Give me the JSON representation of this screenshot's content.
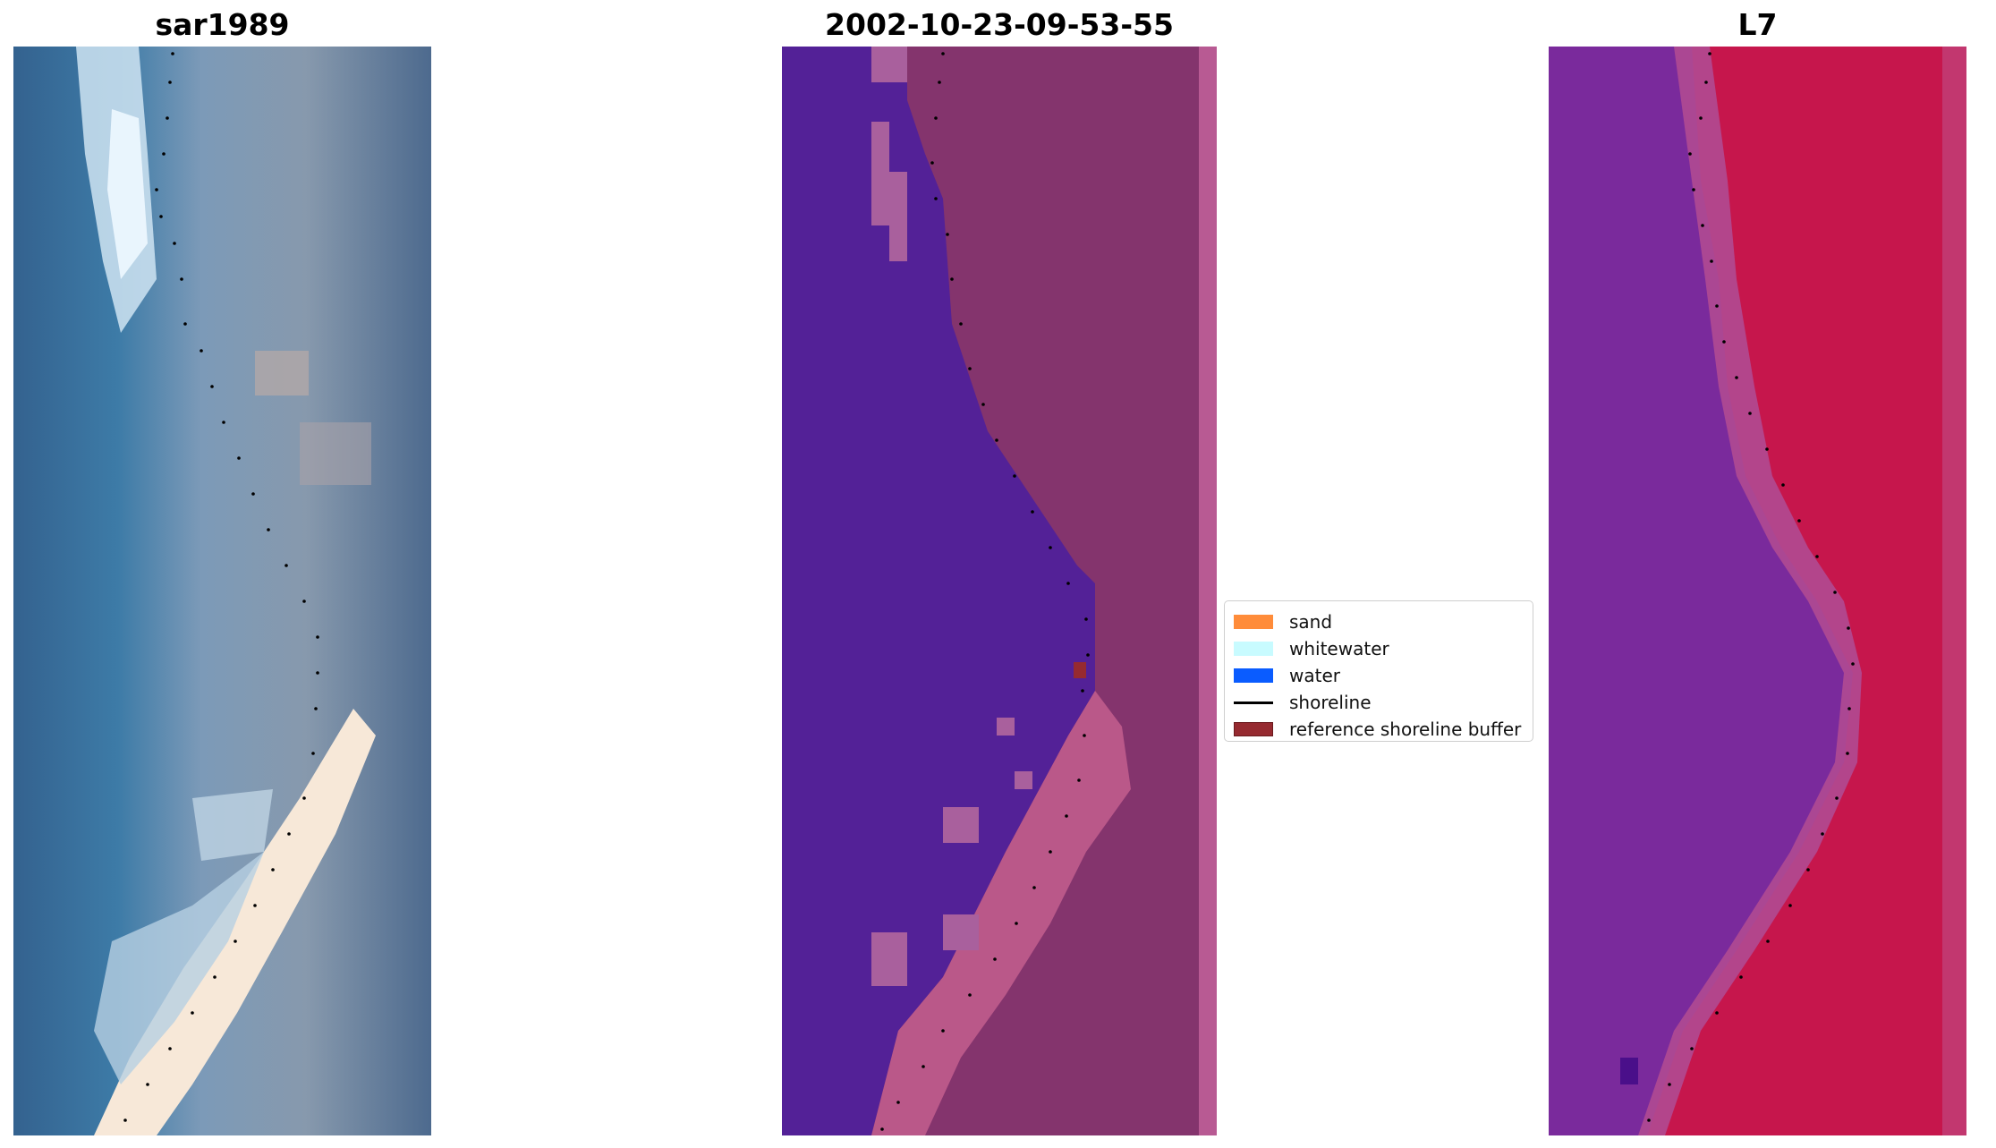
{
  "figure": {
    "panels": [
      {
        "title": "sar1989",
        "kind": "rgb"
      },
      {
        "title": "2002-10-23-09-53-55",
        "kind": "classified"
      },
      {
        "title": "L7",
        "kind": "index"
      }
    ]
  },
  "legend": {
    "items": [
      {
        "label": "sand",
        "color": "#ff8c3a",
        "type": "patch"
      },
      {
        "label": "whitewater",
        "color": "#c8fbff",
        "type": "patch"
      },
      {
        "label": "water",
        "color": "#0a5cff",
        "type": "patch"
      },
      {
        "label": "shoreline",
        "color": "#000000",
        "type": "line"
      },
      {
        "label": "reference shoreline buffer",
        "color": "#962a30",
        "type": "patch"
      }
    ]
  }
}
